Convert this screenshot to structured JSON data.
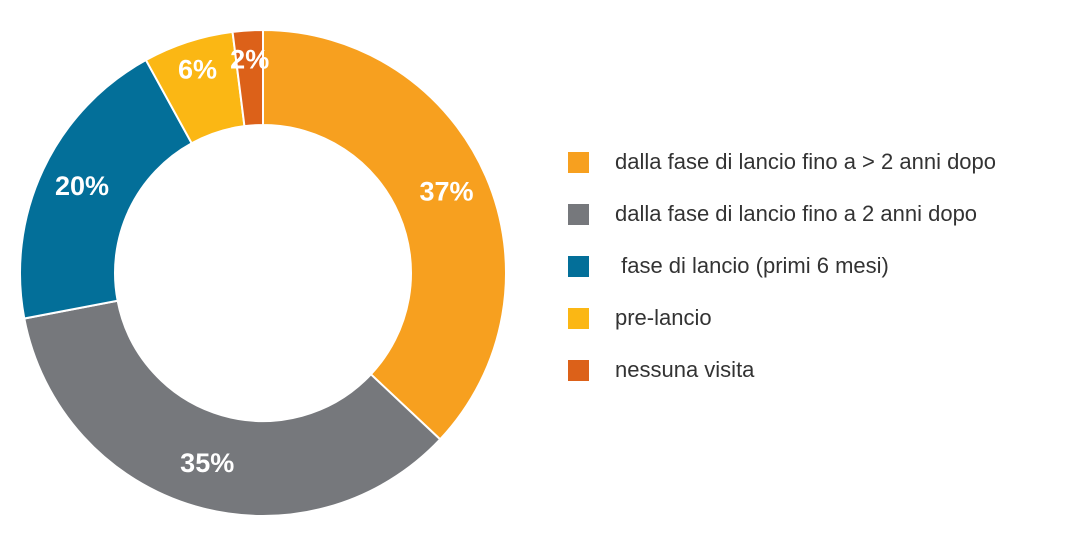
{
  "chart_data": {
    "type": "donut",
    "categories": [
      "dalla fase di lancio fino a > 2 anni dopo",
      "dalla fase di lancio fino a 2 anni dopo",
      " fase di lancio (primi 6 mesi)",
      "pre-lancio",
      "nessuna visita"
    ],
    "values": [
      37,
      35,
      20,
      6,
      2
    ],
    "value_labels": [
      "37%",
      "35%",
      "20%",
      "6%",
      "2%"
    ],
    "colors": [
      "#f7a01f",
      "#76787c",
      "#036f99",
      "#fbb714",
      "#dc6119"
    ],
    "legend": "right"
  }
}
